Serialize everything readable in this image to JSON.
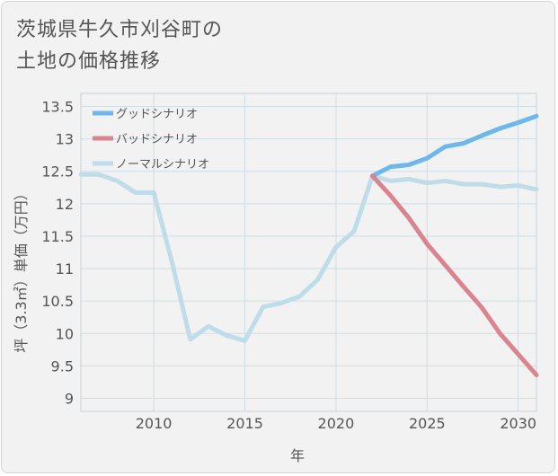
{
  "title_lines": [
    "茨城県牛久市刈谷町の",
    "土地の価格推移"
  ],
  "chart_data": {
    "type": "line",
    "xlabel": "年",
    "ylabel": "坪（3.3㎡）単価（万円）",
    "xlim": [
      2006,
      2031
    ],
    "ylim": [
      8.8,
      13.7
    ],
    "x_ticks": [
      2010,
      2015,
      2020,
      2025,
      2030
    ],
    "y_ticks": [
      9,
      9.5,
      10,
      10.5,
      11,
      11.5,
      12,
      12.5,
      13,
      13.5
    ],
    "y_tick_labels": [
      "9",
      "9.5",
      "10",
      "10.5",
      "11",
      "11.5",
      "12",
      "12.5",
      "13",
      "13.5"
    ],
    "grid": true,
    "legend_position": "top-left",
    "series": [
      {
        "name": "グッドシナリオ",
        "color": "#6cb8ea",
        "x": [
          2022,
          2023,
          2024,
          2025,
          2026,
          2027,
          2028,
          2029,
          2030,
          2031
        ],
        "y": [
          12.43,
          12.57,
          12.6,
          12.7,
          12.88,
          12.93,
          13.05,
          13.16,
          13.25,
          13.35
        ]
      },
      {
        "name": "バッドシナリオ",
        "color": "#d9848e",
        "x": [
          2022,
          2023,
          2024,
          2025,
          2026,
          2027,
          2028,
          2029,
          2030,
          2031
        ],
        "y": [
          12.43,
          12.12,
          11.78,
          11.38,
          11.05,
          10.72,
          10.4,
          10.0,
          9.68,
          9.36
        ]
      },
      {
        "name": "ノーマルシナリオ",
        "color": "#bfdce9",
        "x": [
          2006,
          2007,
          2008,
          2009,
          2010,
          2011,
          2012,
          2013,
          2014,
          2015,
          2016,
          2017,
          2018,
          2019,
          2020,
          2021,
          2022,
          2023,
          2024,
          2025,
          2026,
          2027,
          2028,
          2029,
          2030,
          2031
        ],
        "y": [
          12.45,
          12.45,
          12.35,
          12.17,
          12.17,
          11.1,
          9.91,
          10.11,
          9.97,
          9.89,
          10.41,
          10.47,
          10.57,
          10.83,
          11.33,
          11.58,
          12.43,
          12.35,
          12.38,
          12.32,
          12.35,
          12.3,
          12.3,
          12.26,
          12.28,
          12.22
        ]
      }
    ]
  }
}
